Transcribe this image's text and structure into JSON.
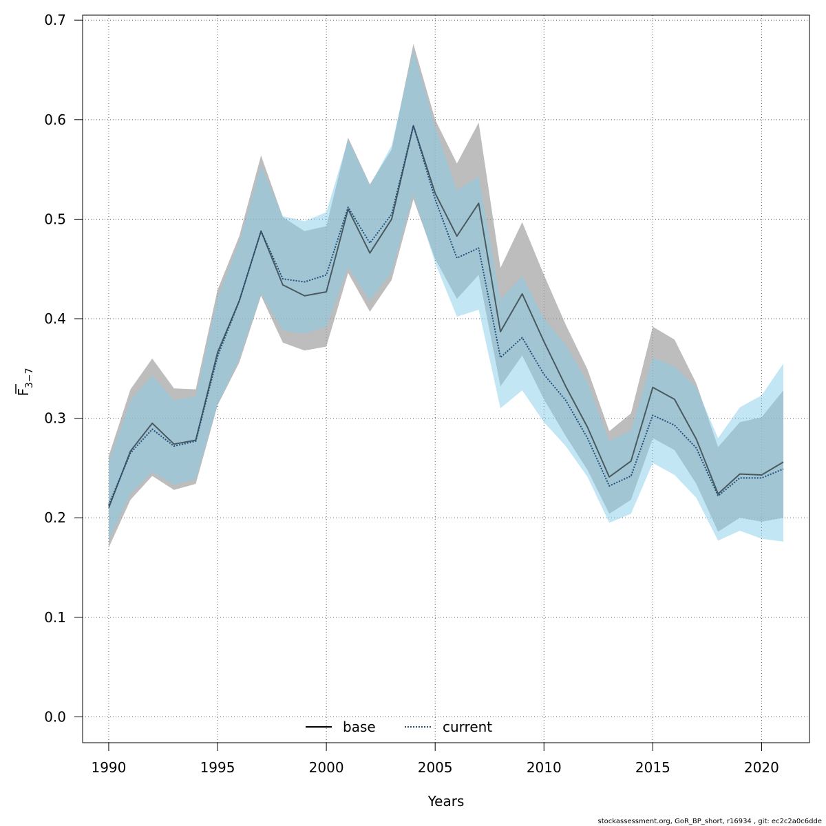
{
  "chart_data": {
    "type": "area",
    "xlabel": "Years",
    "ylabel": "F",
    "ylabel_subscript": "3−7",
    "xlim": [
      1988.8,
      2022.2
    ],
    "ylim": [
      -0.026,
      0.705
    ],
    "xticks": [
      1990,
      1995,
      2000,
      2005,
      2010,
      2015,
      2020
    ],
    "yticks": [
      0.0,
      0.1,
      0.2,
      0.3,
      0.4,
      0.5,
      0.6,
      0.7
    ],
    "xtick_labels": [
      "1990",
      "1995",
      "2000",
      "2005",
      "2010",
      "2015",
      "2020"
    ],
    "ytick_labels": [
      "0.0",
      "0.1",
      "0.2",
      "0.3",
      "0.4",
      "0.5",
      "0.6",
      "0.7"
    ],
    "grid": true,
    "legend_position": "bottom-center",
    "x": [
      1990,
      1991,
      1992,
      1993,
      1994,
      1995,
      1996,
      1997,
      1998,
      1999,
      2000,
      2001,
      2002,
      2003,
      2004,
      2005,
      2006,
      2007,
      2008,
      2009,
      2010,
      2011,
      2012,
      2013,
      2014,
      2015,
      2016,
      2017,
      2018,
      2019,
      2020,
      2021
    ],
    "series": [
      {
        "name": "base",
        "style": "solid",
        "line_color": "#000000",
        "band_color": "#9a9a9a",
        "band_opacity": 0.65,
        "values": [
          0.21,
          0.267,
          0.295,
          0.274,
          0.278,
          0.366,
          0.418,
          0.488,
          0.434,
          0.423,
          0.427,
          0.51,
          0.466,
          0.5,
          0.594,
          0.526,
          0.483,
          0.516,
          0.387,
          0.425,
          0.377,
          0.332,
          0.291,
          0.241,
          0.257,
          0.331,
          0.319,
          0.279,
          0.224,
          0.244,
          0.243,
          0.256
        ],
        "lower": [
          0.17,
          0.218,
          0.242,
          0.228,
          0.234,
          0.313,
          0.356,
          0.423,
          0.376,
          0.368,
          0.372,
          0.446,
          0.407,
          0.439,
          0.52,
          0.46,
          0.42,
          0.444,
          0.332,
          0.363,
          0.319,
          0.282,
          0.248,
          0.204,
          0.218,
          0.28,
          0.268,
          0.234,
          0.186,
          0.2,
          0.196,
          0.2
        ],
        "upper": [
          0.262,
          0.329,
          0.36,
          0.33,
          0.329,
          0.429,
          0.483,
          0.564,
          0.502,
          0.488,
          0.493,
          0.582,
          0.535,
          0.57,
          0.676,
          0.6,
          0.556,
          0.597,
          0.451,
          0.497,
          0.444,
          0.394,
          0.349,
          0.287,
          0.305,
          0.392,
          0.379,
          0.335,
          0.271,
          0.296,
          0.301,
          0.328
        ]
      },
      {
        "name": "current",
        "style": "dotted",
        "line_color": "#1f4e79",
        "band_color": "#87ceeb",
        "band_opacity": 0.5,
        "values": [
          0.213,
          0.265,
          0.289,
          0.272,
          0.277,
          0.362,
          0.418,
          0.488,
          0.44,
          0.437,
          0.444,
          0.512,
          0.476,
          0.505,
          0.594,
          0.52,
          0.461,
          0.471,
          0.361,
          0.381,
          0.344,
          0.318,
          0.28,
          0.232,
          0.242,
          0.303,
          0.293,
          0.27,
          0.222,
          0.24,
          0.24,
          0.249
        ],
        "lower": [
          0.178,
          0.224,
          0.246,
          0.233,
          0.239,
          0.313,
          0.36,
          0.425,
          0.388,
          0.385,
          0.392,
          0.452,
          0.418,
          0.447,
          0.525,
          0.456,
          0.402,
          0.409,
          0.31,
          0.328,
          0.296,
          0.272,
          0.241,
          0.195,
          0.204,
          0.255,
          0.243,
          0.22,
          0.177,
          0.187,
          0.179,
          0.176
        ],
        "upper": [
          0.256,
          0.318,
          0.343,
          0.318,
          0.322,
          0.421,
          0.477,
          0.554,
          0.503,
          0.498,
          0.507,
          0.58,
          0.534,
          0.574,
          0.67,
          0.593,
          0.529,
          0.543,
          0.419,
          0.443,
          0.4,
          0.374,
          0.336,
          0.277,
          0.288,
          0.361,
          0.352,
          0.331,
          0.28,
          0.311,
          0.323,
          0.355
        ]
      }
    ]
  },
  "footer": {
    "credit": "stockassessment.org, GoR_BP_short, r16934 , git: ec2c2a0c6dde"
  }
}
